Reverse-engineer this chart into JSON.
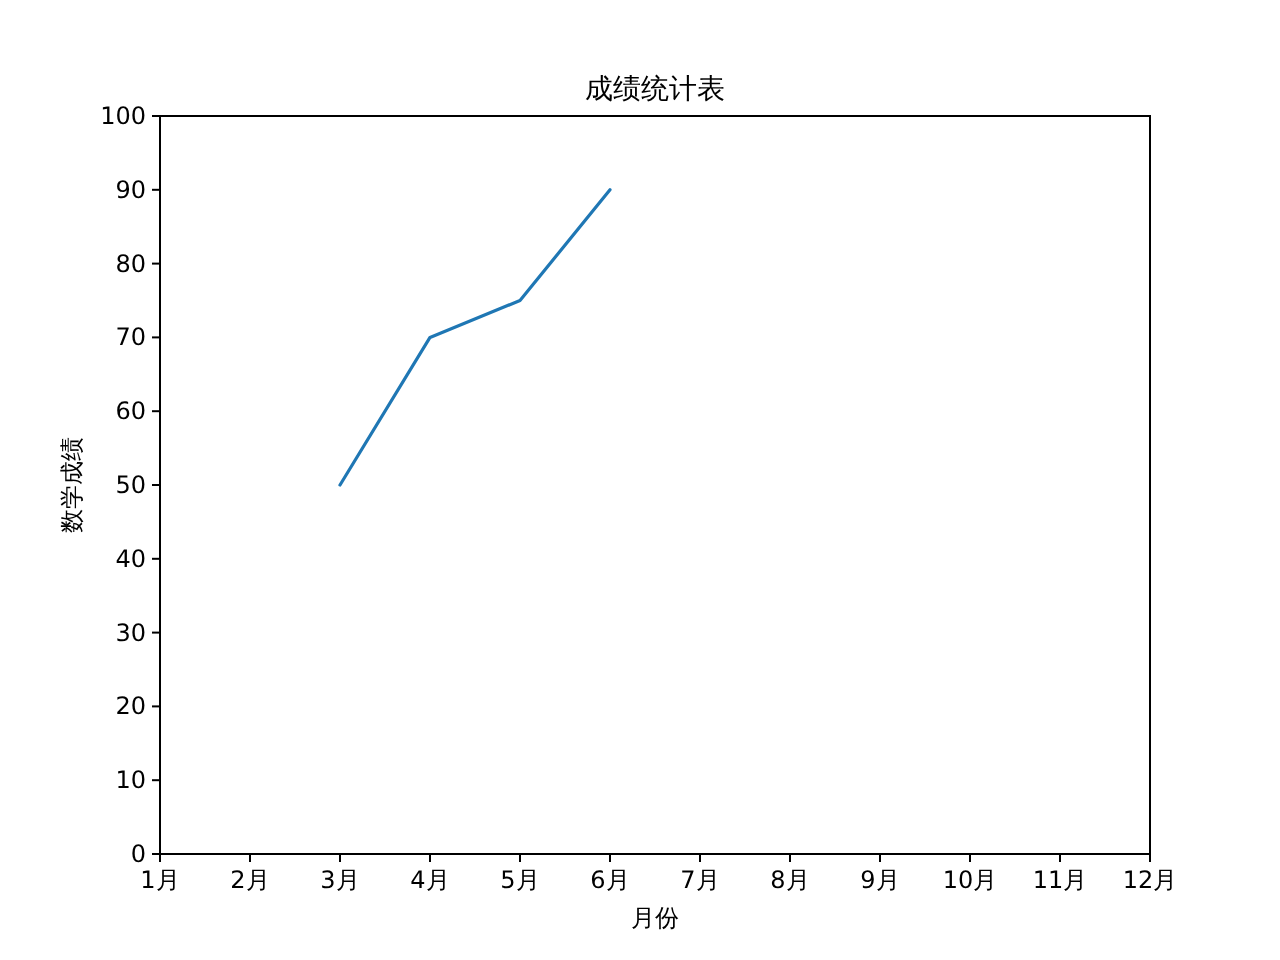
{
  "chart_data": {
    "type": "line",
    "title": "成绩统计表",
    "xlabel": "月份",
    "ylabel": "数学成绩",
    "categories": [
      "1月",
      "2月",
      "3月",
      "4月",
      "5月",
      "6月",
      "7月",
      "8月",
      "9月",
      "10月",
      "11月",
      "12月"
    ],
    "values": [
      null,
      null,
      50,
      70,
      75,
      90,
      null,
      null,
      null,
      null,
      null,
      null
    ],
    "color": "#1f77b4",
    "ylim": [
      0,
      100
    ],
    "yticks": [
      0,
      10,
      20,
      30,
      40,
      50,
      60,
      70,
      80,
      90,
      100
    ]
  }
}
